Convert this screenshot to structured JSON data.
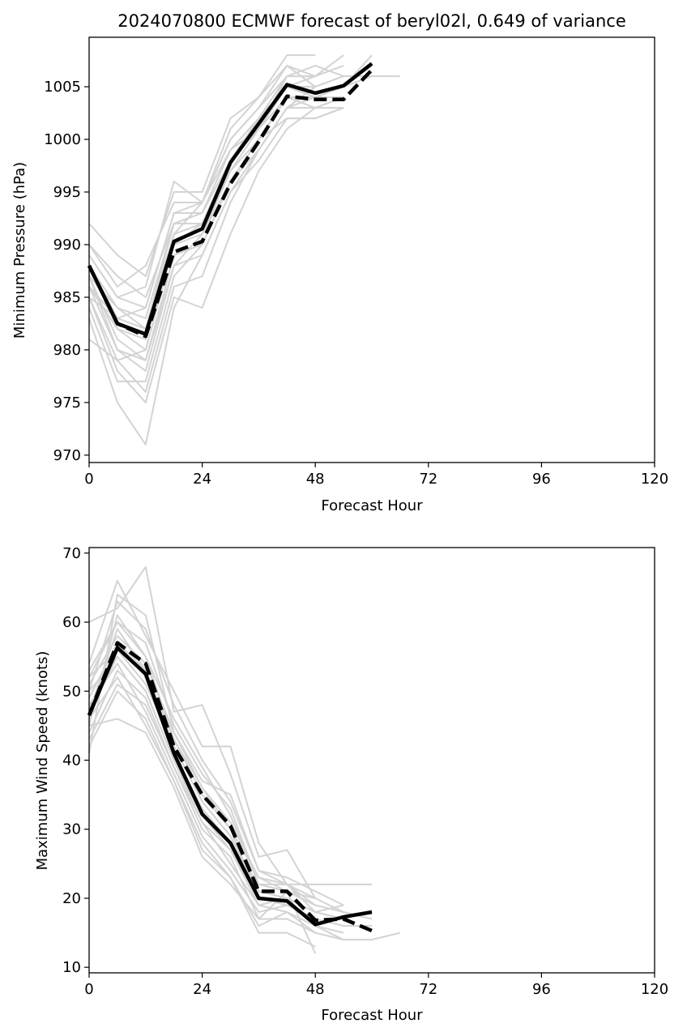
{
  "figure": {
    "title": "2024070800 ECMWF forecast of beryl02l, 0.649 of variance"
  },
  "colors": {
    "members": "#d3d3d3",
    "mean": "#000000",
    "axes": "#000000",
    "background": "#ffffff"
  },
  "chart_data": [
    {
      "type": "line",
      "title": "2024070800 ECMWF forecast of beryl02l, 0.649 of variance",
      "xlabel": "Forecast Hour",
      "ylabel": "Minimum Pressure (hPa)",
      "xlim": [
        0,
        120
      ],
      "ylim": [
        969.3,
        1009.7
      ],
      "xticks": [
        0,
        24,
        48,
        72,
        96,
        120
      ],
      "yticks": [
        970,
        975,
        980,
        985,
        990,
        995,
        1000,
        1005
      ],
      "grid": false,
      "legend": "none",
      "x": [
        0,
        6,
        12,
        18,
        24,
        30,
        36,
        42,
        48,
        54,
        60,
        66
      ],
      "series": [
        {
          "style": "solid",
          "values": [
            988.0,
            982.5,
            981.5,
            990.3,
            991.5,
            997.8,
            1001.5,
            1005.2,
            1004.4,
            1005.1,
            1007.2,
            null
          ]
        },
        {
          "style": "dashed",
          "values": [
            988.0,
            982.5,
            981.3,
            989.3,
            990.3,
            995.8,
            999.8,
            1004.1,
            1003.8,
            1003.8,
            1006.6,
            null
          ]
        }
      ],
      "members": [
        [
          992,
          989,
          987,
          995,
          995,
          1002,
          1004,
          1008,
          1008,
          null,
          null,
          null
        ],
        [
          990,
          987,
          985,
          992,
          993,
          999,
          1001,
          1005,
          1004,
          1005,
          1008,
          null
        ],
        [
          990,
          986,
          988,
          994,
          994,
          1000,
          1003,
          1006,
          1007,
          1006,
          null,
          null
        ],
        [
          989,
          985,
          984,
          993,
          993,
          999,
          1002,
          1005,
          1005,
          1006,
          1006,
          1006
        ],
        [
          988,
          983,
          982,
          991,
          992,
          998,
          1001,
          1004,
          1003,
          1004,
          null,
          null
        ],
        [
          988,
          982,
          980,
          990,
          991,
          997,
          1000,
          1004,
          1004,
          1005,
          1007,
          null
        ],
        [
          987,
          984,
          983,
          992,
          992,
          998,
          1002,
          1005,
          1005,
          null,
          null,
          null
        ],
        [
          987,
          981,
          979,
          989,
          990,
          996,
          999,
          1003,
          1003,
          1004,
          null,
          null
        ],
        [
          986,
          982,
          981,
          991,
          992,
          997,
          1001,
          1006,
          1006,
          1007,
          null,
          null
        ],
        [
          986,
          980,
          978,
          988,
          989,
          995,
          998,
          1002,
          1002,
          1003,
          null,
          null
        ],
        [
          985,
          979,
          976,
          986,
          987,
          994,
          999,
          1003,
          1005,
          null,
          null,
          null
        ],
        [
          985,
          978,
          975,
          985,
          984,
          991,
          997,
          1001,
          1003,
          1003,
          null,
          null
        ],
        [
          984,
          977,
          977,
          987,
          990,
          996,
          1000,
          1004,
          1004,
          1005,
          null,
          null
        ],
        [
          981,
          979,
          980,
          990,
          992,
          998,
          1002,
          1006,
          1006,
          null,
          null,
          null
        ],
        [
          983,
          975,
          971,
          984,
          989,
          995,
          999,
          1003,
          1004,
          1004,
          null,
          null
        ],
        [
          989,
          985,
          986,
          996,
          994,
          1001,
          1004,
          1007,
          1006,
          1008,
          null,
          null
        ],
        [
          986,
          983,
          984,
          993,
          994,
          1000,
          1003,
          1007,
          1005,
          1006,
          null,
          null
        ],
        [
          988,
          984,
          982,
          991,
          994,
          999,
          1002,
          1005,
          1004,
          1005,
          1006,
          null
        ],
        [
          987,
          980,
          979,
          988,
          991,
          996,
          1000,
          1002,
          1002,
          1003,
          null,
          null
        ],
        [
          985,
          983,
          982,
          992,
          993,
          998,
          1001,
          1005,
          1006,
          null,
          null,
          null
        ]
      ]
    },
    {
      "type": "line",
      "title": "",
      "xlabel": "Forecast Hour",
      "ylabel": "Maximum Wind Speed (knots)",
      "xlim": [
        0,
        120
      ],
      "ylim": [
        9.2,
        70.8
      ],
      "xticks": [
        0,
        24,
        48,
        72,
        96,
        120
      ],
      "yticks": [
        10,
        20,
        30,
        40,
        50,
        60,
        70
      ],
      "grid": false,
      "legend": "none",
      "x": [
        0,
        6,
        12,
        18,
        24,
        30,
        36,
        42,
        48,
        54,
        60,
        66
      ],
      "series": [
        {
          "style": "solid",
          "values": [
            46.5,
            56.3,
            52.5,
            41.0,
            32.2,
            28.0,
            20.0,
            19.6,
            16.2,
            17.3,
            18.0,
            null
          ]
        },
        {
          "style": "dashed",
          "values": [
            46.5,
            57.0,
            54.0,
            42.0,
            35.0,
            30.5,
            21.0,
            21.0,
            16.8,
            17.0,
            15.3,
            null
          ]
        }
      ],
      "members": [
        [
          60,
          62,
          68,
          47,
          48,
          38,
          26,
          27,
          20,
          null,
          null,
          null
        ],
        [
          54,
          66,
          58,
          50,
          42,
          42,
          28,
          22,
          18,
          19,
          null,
          null
        ],
        [
          41,
          64,
          61,
          44,
          37,
          35,
          24,
          22,
          20,
          18,
          17,
          null
        ],
        [
          45,
          61,
          55,
          46,
          39,
          32,
          22,
          21,
          19,
          null,
          null,
          null
        ],
        [
          47,
          59,
          53,
          43,
          35,
          30,
          20,
          19,
          17,
          16,
          16,
          null
        ],
        [
          49,
          57,
          52,
          41,
          33,
          28,
          22,
          22,
          22,
          22,
          22,
          null
        ],
        [
          50,
          55,
          50,
          40,
          31,
          27,
          19,
          18,
          16,
          15,
          null,
          null
        ],
        [
          44,
          53,
          49,
          39,
          30,
          26,
          17,
          17,
          15,
          14,
          14,
          15
        ],
        [
          52,
          56,
          51,
          42,
          34,
          29,
          21,
          20,
          18,
          17,
          null,
          null
        ],
        [
          48,
          54,
          47,
          38,
          29,
          24,
          18,
          19,
          17,
          null,
          null,
          null
        ],
        [
          51,
          58,
          54,
          44,
          36,
          31,
          23,
          21,
          19,
          18,
          null,
          null
        ],
        [
          46,
          52,
          45,
          37,
          28,
          23,
          16,
          18,
          15,
          null,
          null,
          null
        ],
        [
          53,
          60,
          57,
          45,
          38,
          33,
          22,
          21,
          20,
          null,
          null,
          null
        ],
        [
          43,
          51,
          48,
          39,
          31,
          25,
          19,
          20,
          16,
          14,
          null,
          null
        ],
        [
          50,
          63,
          59,
          48,
          40,
          34,
          24,
          23,
          21,
          19,
          null,
          null
        ],
        [
          47,
          55,
          50,
          40,
          32,
          27,
          20,
          19,
          17,
          null,
          null,
          null
        ],
        [
          42,
          50,
          46,
          37,
          27,
          23,
          15,
          15,
          13,
          null,
          null,
          null
        ],
        [
          49,
          57,
          53,
          42,
          34,
          29,
          21,
          20,
          18,
          17,
          null,
          null
        ],
        [
          45,
          46,
          44,
          36,
          26,
          22,
          17,
          21,
          12,
          null,
          null,
          null
        ],
        [
          52,
          60,
          55,
          43,
          36,
          30,
          23,
          22,
          19,
          null,
          null,
          null
        ]
      ]
    }
  ]
}
